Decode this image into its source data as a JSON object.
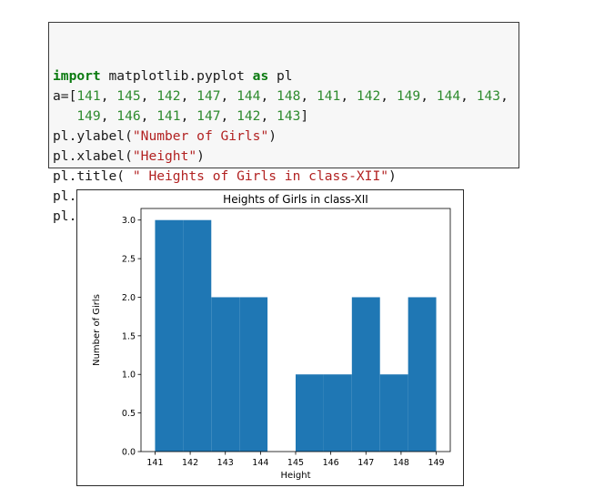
{
  "code_cell": {
    "lines": [
      [
        {
          "t": "import",
          "c": "kw"
        },
        {
          "t": " matplotlib.pyplot ",
          "c": "plain"
        },
        {
          "t": "as",
          "c": "kw"
        },
        {
          "t": " pl",
          "c": "plain"
        }
      ],
      [
        {
          "t": "a=[",
          "c": "plain"
        },
        {
          "t": "141",
          "c": "num"
        },
        {
          "t": ", ",
          "c": "plain"
        },
        {
          "t": "145",
          "c": "num"
        },
        {
          "t": ", ",
          "c": "plain"
        },
        {
          "t": "142",
          "c": "num"
        },
        {
          "t": ", ",
          "c": "plain"
        },
        {
          "t": "147",
          "c": "num"
        },
        {
          "t": ", ",
          "c": "plain"
        },
        {
          "t": "144",
          "c": "num"
        },
        {
          "t": ", ",
          "c": "plain"
        },
        {
          "t": "148",
          "c": "num"
        },
        {
          "t": ", ",
          "c": "plain"
        },
        {
          "t": "141",
          "c": "num"
        },
        {
          "t": ", ",
          "c": "plain"
        },
        {
          "t": "142",
          "c": "num"
        },
        {
          "t": ", ",
          "c": "plain"
        },
        {
          "t": "149",
          "c": "num"
        },
        {
          "t": ", ",
          "c": "plain"
        },
        {
          "t": "144",
          "c": "num"
        },
        {
          "t": ", ",
          "c": "plain"
        },
        {
          "t": "143",
          "c": "num"
        },
        {
          "t": ",",
          "c": "plain"
        }
      ],
      [
        {
          "t": "   ",
          "c": "plain"
        },
        {
          "t": "149",
          "c": "num"
        },
        {
          "t": ", ",
          "c": "plain"
        },
        {
          "t": "146",
          "c": "num"
        },
        {
          "t": ", ",
          "c": "plain"
        },
        {
          "t": "141",
          "c": "num"
        },
        {
          "t": ", ",
          "c": "plain"
        },
        {
          "t": "147",
          "c": "num"
        },
        {
          "t": ", ",
          "c": "plain"
        },
        {
          "t": "142",
          "c": "num"
        },
        {
          "t": ", ",
          "c": "plain"
        },
        {
          "t": "143",
          "c": "num"
        },
        {
          "t": "]",
          "c": "plain"
        }
      ],
      [
        {
          "t": "pl.ylabel(",
          "c": "plain"
        },
        {
          "t": "\"Number of Girls\"",
          "c": "str"
        },
        {
          "t": ")",
          "c": "plain"
        }
      ],
      [
        {
          "t": "pl.xlabel(",
          "c": "plain"
        },
        {
          "t": "\"Height\"",
          "c": "str"
        },
        {
          "t": ")",
          "c": "plain"
        }
      ],
      [
        {
          "t": "pl.title( ",
          "c": "plain"
        },
        {
          "t": "\" Heights of Girls in class-XII\"",
          "c": "str"
        },
        {
          "t": ")",
          "c": "plain"
        }
      ],
      [
        {
          "t": "pl.hist(a)",
          "c": "plain"
        }
      ],
      [
        {
          "t": "pl.show()",
          "c": "plain"
        }
      ]
    ]
  },
  "colors": {
    "bar": "#1f77b4",
    "keyword": "#0b7a10",
    "number": "#2e8b2e",
    "string": "#b22222"
  },
  "chart_data": {
    "type": "bar",
    "title": "Heights of Girls in class-XII",
    "xlabel": "Height",
    "ylabel": "Number of Girls",
    "bins": [
      [
        141.0,
        141.8
      ],
      [
        141.8,
        142.6
      ],
      [
        142.6,
        143.4
      ],
      [
        143.4,
        144.2
      ],
      [
        144.2,
        145.0
      ],
      [
        145.0,
        145.8
      ],
      [
        145.8,
        146.6
      ],
      [
        146.6,
        147.4
      ],
      [
        147.4,
        148.2
      ],
      [
        148.2,
        149.0
      ]
    ],
    "values": [
      3,
      3,
      2,
      2,
      0,
      1,
      1,
      2,
      1,
      2
    ],
    "xlim": [
      140.6,
      149.4
    ],
    "ylim": [
      0,
      3.15
    ],
    "xticks": [
      141,
      142,
      143,
      144,
      145,
      146,
      147,
      148,
      149
    ],
    "yticks": [
      0.0,
      0.5,
      1.0,
      1.5,
      2.0,
      2.5,
      3.0
    ],
    "ytick_labels": [
      "0.0",
      "0.5",
      "1.0",
      "1.5",
      "2.0",
      "2.5",
      "3.0"
    ],
    "grid": false,
    "legend": "none"
  }
}
